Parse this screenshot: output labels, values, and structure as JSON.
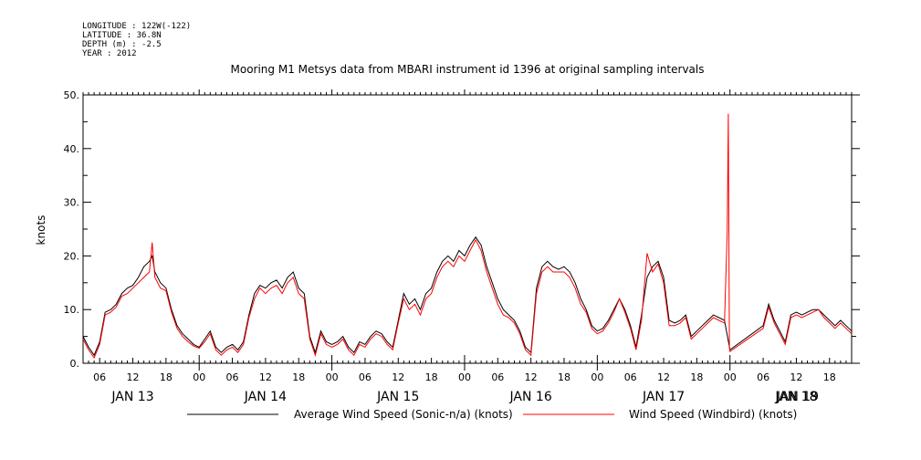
{
  "header": {
    "meta_lines": [
      "LONGITUDE : 122W(-122)",
      "LATITUDE : 36.8N",
      "DEPTH (m) : -2.5",
      "YEAR : 2012"
    ]
  },
  "chart_data": {
    "type": "line",
    "title": "Mooring M1 Metsys data from MBARI instrument id 1396 at original sampling intervals",
    "ylabel": "knots",
    "xlabel": "",
    "ylim": [
      0,
      50
    ],
    "yticks": [
      0,
      10,
      20,
      30,
      40,
      50
    ],
    "ytick_labels": [
      "0.",
      "10.",
      "20.",
      "30.",
      "40.",
      "50."
    ],
    "x_unit": "hours since JAN 13 2012 00:00",
    "xlim": [
      3,
      142
    ],
    "hour_ticks": [
      {
        "t": 6,
        "label": "06"
      },
      {
        "t": 12,
        "label": "12"
      },
      {
        "t": 18,
        "label": "18"
      },
      {
        "t": 24,
        "label": "00"
      },
      {
        "t": 30,
        "label": "06"
      },
      {
        "t": 36,
        "label": "12"
      },
      {
        "t": 42,
        "label": "18"
      },
      {
        "t": 48,
        "label": "00"
      },
      {
        "t": 54,
        "label": "06"
      },
      {
        "t": 60,
        "label": "12"
      },
      {
        "t": 66,
        "label": "18"
      },
      {
        "t": 72,
        "label": "00"
      },
      {
        "t": 78,
        "label": "06"
      },
      {
        "t": 84,
        "label": "12"
      },
      {
        "t": 90,
        "label": "18"
      },
      {
        "t": 96,
        "label": "00"
      },
      {
        "t": 102,
        "label": "06"
      },
      {
        "t": 108,
        "label": "12"
      },
      {
        "t": 114,
        "label": "18"
      },
      {
        "t": 120,
        "label": "00"
      },
      {
        "t": 126,
        "label": "06"
      },
      {
        "t": 132,
        "label": "12"
      },
      {
        "t": 138,
        "label": "18"
      }
    ],
    "day_labels": [
      {
        "t": 12,
        "label": "JAN 13"
      },
      {
        "t": 36,
        "label": "JAN 14"
      },
      {
        "t": 60,
        "label": "JAN 15"
      },
      {
        "t": 84,
        "label": "JAN 16"
      },
      {
        "t": 108,
        "label": "JAN 17"
      },
      {
        "t": 132,
        "label": "JAN 18"
      },
      {
        "t": 156,
        "label": "JAN 19"
      }
    ],
    "series": [
      {
        "name": "Average Wind Speed (Sonic-n/a) (knots)",
        "color": "#000000",
        "points": [
          [
            3,
            5
          ],
          [
            4,
            3
          ],
          [
            5,
            1.5
          ],
          [
            6,
            4
          ],
          [
            7,
            9.5
          ],
          [
            8,
            10
          ],
          [
            9,
            11
          ],
          [
            10,
            13
          ],
          [
            11,
            14
          ],
          [
            12,
            14.5
          ],
          [
            13,
            16
          ],
          [
            14,
            18
          ],
          [
            15,
            19
          ],
          [
            15.5,
            20
          ],
          [
            16,
            17
          ],
          [
            17,
            15
          ],
          [
            18,
            14
          ],
          [
            19,
            10
          ],
          [
            20,
            7
          ],
          [
            21,
            5.5
          ],
          [
            22,
            4.5
          ],
          [
            23,
            3.5
          ],
          [
            24,
            3
          ],
          [
            25,
            4.5
          ],
          [
            26,
            6
          ],
          [
            27,
            3
          ],
          [
            28,
            2
          ],
          [
            29,
            3
          ],
          [
            30,
            3.5
          ],
          [
            31,
            2.5
          ],
          [
            32,
            4
          ],
          [
            33,
            9
          ],
          [
            34,
            13
          ],
          [
            35,
            14.5
          ],
          [
            36,
            14
          ],
          [
            37,
            15
          ],
          [
            38,
            15.5
          ],
          [
            39,
            14
          ],
          [
            40,
            16
          ],
          [
            41,
            17
          ],
          [
            42,
            14
          ],
          [
            43,
            13
          ],
          [
            44,
            5
          ],
          [
            45,
            2
          ],
          [
            46,
            6
          ],
          [
            47,
            4
          ],
          [
            48,
            3.5
          ],
          [
            49,
            4
          ],
          [
            50,
            5
          ],
          [
            51,
            3
          ],
          [
            52,
            2
          ],
          [
            53,
            4
          ],
          [
            54,
            3.5
          ],
          [
            55,
            5
          ],
          [
            56,
            6
          ],
          [
            57,
            5.5
          ],
          [
            58,
            4
          ],
          [
            59,
            3
          ],
          [
            60,
            8
          ],
          [
            61,
            13
          ],
          [
            62,
            11
          ],
          [
            63,
            12
          ],
          [
            64,
            10
          ],
          [
            65,
            13
          ],
          [
            66,
            14
          ],
          [
            67,
            17
          ],
          [
            68,
            19
          ],
          [
            69,
            20
          ],
          [
            70,
            19
          ],
          [
            71,
            21
          ],
          [
            72,
            20
          ],
          [
            73,
            22
          ],
          [
            74,
            23.5
          ],
          [
            75,
            22
          ],
          [
            76,
            18
          ],
          [
            77,
            15
          ],
          [
            78,
            12
          ],
          [
            79,
            10
          ],
          [
            80,
            9
          ],
          [
            81,
            8
          ],
          [
            82,
            6
          ],
          [
            83,
            3
          ],
          [
            84,
            2
          ],
          [
            85,
            14
          ],
          [
            86,
            18
          ],
          [
            87,
            19
          ],
          [
            88,
            18
          ],
          [
            89,
            17.5
          ],
          [
            90,
            18
          ],
          [
            91,
            17
          ],
          [
            92,
            15
          ],
          [
            93,
            12
          ],
          [
            94,
            10
          ],
          [
            95,
            7
          ],
          [
            96,
            6
          ],
          [
            97,
            6.5
          ],
          [
            98,
            8
          ],
          [
            99,
            10
          ],
          [
            100,
            12
          ],
          [
            101,
            10
          ],
          [
            102,
            7
          ],
          [
            103,
            3
          ],
          [
            104,
            9
          ],
          [
            105,
            16
          ],
          [
            106,
            18
          ],
          [
            107,
            19
          ],
          [
            108,
            16
          ],
          [
            109,
            8
          ],
          [
            110,
            7.5
          ],
          [
            111,
            8
          ],
          [
            112,
            9
          ],
          [
            113,
            5
          ],
          [
            114,
            6
          ],
          [
            115,
            7
          ],
          [
            116,
            8
          ],
          [
            117,
            9
          ],
          [
            118,
            8.5
          ],
          [
            119,
            8
          ],
          [
            120,
            2.5
          ],
          [
            126,
            7
          ],
          [
            127,
            11
          ],
          [
            128,
            8
          ],
          [
            129,
            6
          ],
          [
            130,
            4
          ],
          [
            131,
            9
          ],
          [
            132,
            9.5
          ],
          [
            133,
            9
          ],
          [
            134,
            9.5
          ],
          [
            135,
            10
          ],
          [
            136,
            10
          ],
          [
            137,
            9
          ],
          [
            138,
            8
          ],
          [
            139,
            7
          ],
          [
            140,
            8
          ],
          [
            141,
            7
          ],
          [
            142,
            6
          ]
        ]
      },
      {
        "name": "Wind Speed (Windbird) (knots)",
        "color": "#ff0000",
        "points": [
          [
            3,
            4.5
          ],
          [
            4,
            2.5
          ],
          [
            5,
            1
          ],
          [
            6,
            3.5
          ],
          [
            7,
            9
          ],
          [
            8,
            9.5
          ],
          [
            9,
            10.5
          ],
          [
            10,
            12.5
          ],
          [
            11,
            13
          ],
          [
            12,
            14
          ],
          [
            13,
            15
          ],
          [
            14,
            16
          ],
          [
            15,
            17
          ],
          [
            15.5,
            22.5
          ],
          [
            16,
            16
          ],
          [
            17,
            14
          ],
          [
            18,
            13.5
          ],
          [
            19,
            9.5
          ],
          [
            20,
            6.5
          ],
          [
            21,
            5
          ],
          [
            22,
            4
          ],
          [
            23,
            3.2
          ],
          [
            24,
            2.8
          ],
          [
            25,
            4
          ],
          [
            26,
            5.5
          ],
          [
            27,
            2.5
          ],
          [
            28,
            1.5
          ],
          [
            29,
            2.5
          ],
          [
            30,
            3
          ],
          [
            31,
            2
          ],
          [
            32,
            3.5
          ],
          [
            33,
            8.5
          ],
          [
            34,
            12
          ],
          [
            35,
            14
          ],
          [
            36,
            13
          ],
          [
            37,
            14
          ],
          [
            38,
            14.5
          ],
          [
            39,
            13
          ],
          [
            40,
            15
          ],
          [
            41,
            16
          ],
          [
            42,
            13
          ],
          [
            43,
            12
          ],
          [
            44,
            4.5
          ],
          [
            45,
            1.5
          ],
          [
            46,
            5.5
          ],
          [
            47,
            3.5
          ],
          [
            48,
            3
          ],
          [
            49,
            3.5
          ],
          [
            50,
            4.5
          ],
          [
            51,
            2.5
          ],
          [
            52,
            1.5
          ],
          [
            53,
            3.5
          ],
          [
            54,
            3
          ],
          [
            55,
            4.5
          ],
          [
            56,
            5.5
          ],
          [
            57,
            5
          ],
          [
            58,
            3.5
          ],
          [
            59,
            2.5
          ],
          [
            60,
            7.5
          ],
          [
            61,
            12
          ],
          [
            62,
            10
          ],
          [
            63,
            11
          ],
          [
            64,
            9
          ],
          [
            65,
            12
          ],
          [
            66,
            13
          ],
          [
            67,
            16
          ],
          [
            68,
            18
          ],
          [
            69,
            19
          ],
          [
            70,
            18
          ],
          [
            71,
            20
          ],
          [
            72,
            19
          ],
          [
            73,
            21
          ],
          [
            74,
            23
          ],
          [
            75,
            21
          ],
          [
            76,
            17
          ],
          [
            77,
            14
          ],
          [
            78,
            11
          ],
          [
            79,
            9
          ],
          [
            80,
            8.5
          ],
          [
            81,
            7.5
          ],
          [
            82,
            5.5
          ],
          [
            83,
            2.5
          ],
          [
            84,
            1.5
          ],
          [
            85,
            13
          ],
          [
            86,
            17
          ],
          [
            87,
            18
          ],
          [
            88,
            17
          ],
          [
            89,
            17
          ],
          [
            90,
            17
          ],
          [
            91,
            16
          ],
          [
            92,
            14
          ],
          [
            93,
            11
          ],
          [
            94,
            9.5
          ],
          [
            95,
            6.5
          ],
          [
            96,
            5.5
          ],
          [
            97,
            6
          ],
          [
            98,
            7.5
          ],
          [
            99,
            9.5
          ],
          [
            100,
            12
          ],
          [
            101,
            9.5
          ],
          [
            102,
            6.5
          ],
          [
            103,
            2.5
          ],
          [
            104,
            8
          ],
          [
            105,
            20.5
          ],
          [
            106,
            17
          ],
          [
            107,
            18.5
          ],
          [
            108,
            15
          ],
          [
            109,
            7
          ],
          [
            110,
            7
          ],
          [
            111,
            7.5
          ],
          [
            112,
            8.5
          ],
          [
            113,
            4.5
          ],
          [
            114,
            5.5
          ],
          [
            115,
            6.5
          ],
          [
            116,
            7.5
          ],
          [
            117,
            8.5
          ],
          [
            118,
            8
          ],
          [
            119,
            7.5
          ],
          [
            119.5,
            24.5
          ],
          [
            119.7,
            46.5
          ],
          [
            119.9,
            3
          ],
          [
            120,
            2.2
          ],
          [
            126,
            6.5
          ],
          [
            127,
            10.5
          ],
          [
            128,
            7.5
          ],
          [
            129,
            5.5
          ],
          [
            130,
            3.5
          ],
          [
            131,
            8.5
          ],
          [
            132,
            9
          ],
          [
            133,
            8.5
          ],
          [
            134,
            9
          ],
          [
            135,
            9.5
          ],
          [
            136,
            10
          ],
          [
            137,
            8.5
          ],
          [
            138,
            7.5
          ],
          [
            139,
            6.5
          ],
          [
            140,
            7.5
          ],
          [
            141,
            6.5
          ],
          [
            142,
            5.5
          ]
        ]
      }
    ],
    "legend": [
      "Average Wind Speed (Sonic-n/a) (knots)",
      "Wind Speed (Windbird) (knots)"
    ],
    "legend_position": "bottom"
  }
}
